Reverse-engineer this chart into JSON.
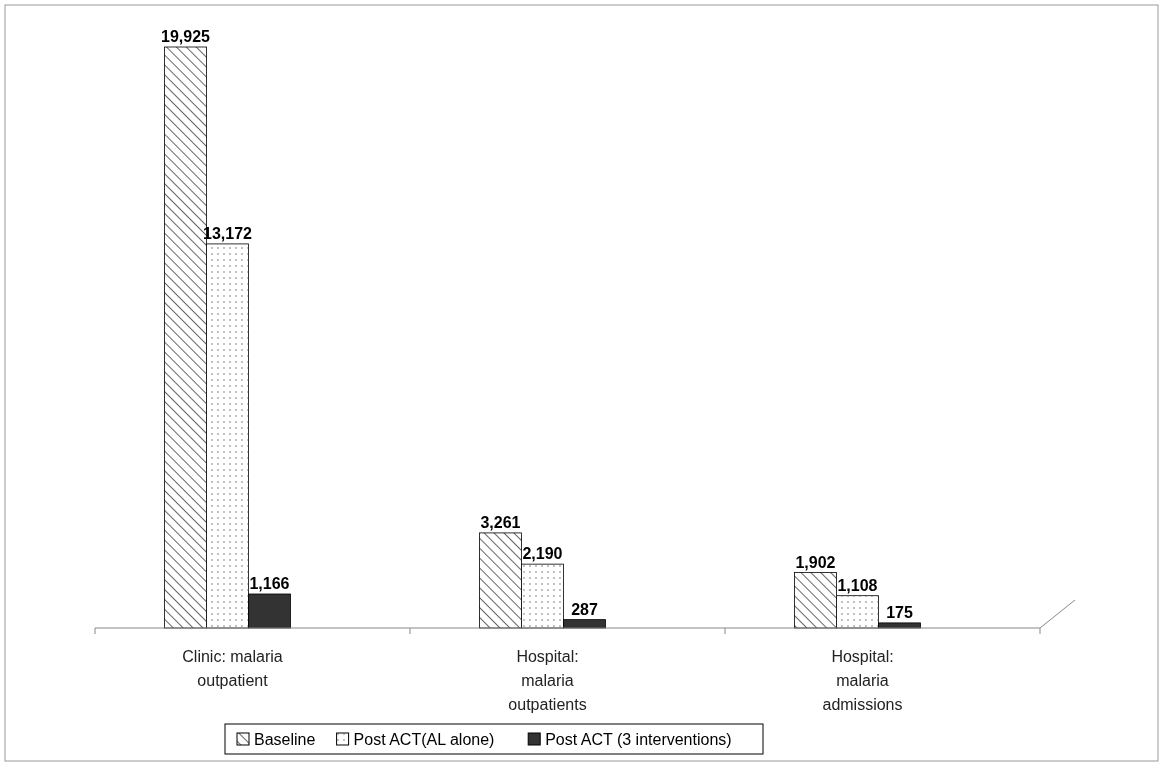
{
  "chart_data": {
    "type": "bar",
    "categories": [
      "Clinic: malaria outpatient",
      "Hospital: malaria outpatients",
      "Hospital: malaria admissions"
    ],
    "series": [
      {
        "name": "Baseline",
        "color": "#ffffff",
        "values": [
          19925,
          3261,
          1902
        ],
        "value_labels": [
          "19,925",
          "3,261",
          "1,902"
        ]
      },
      {
        "name": "Post ACT(AL alone)",
        "color": "#ffffff",
        "values": [
          13172,
          2190,
          1108
        ],
        "value_labels": [
          "13,172",
          "2,190",
          "1,108"
        ]
      },
      {
        "name": "Post ACT (3 interventions)",
        "color": "#333333",
        "values": [
          1166,
          287,
          175
        ],
        "value_labels": [
          "1,166",
          "287",
          "175"
        ]
      }
    ],
    "legend": "bottom",
    "grid": false
  }
}
